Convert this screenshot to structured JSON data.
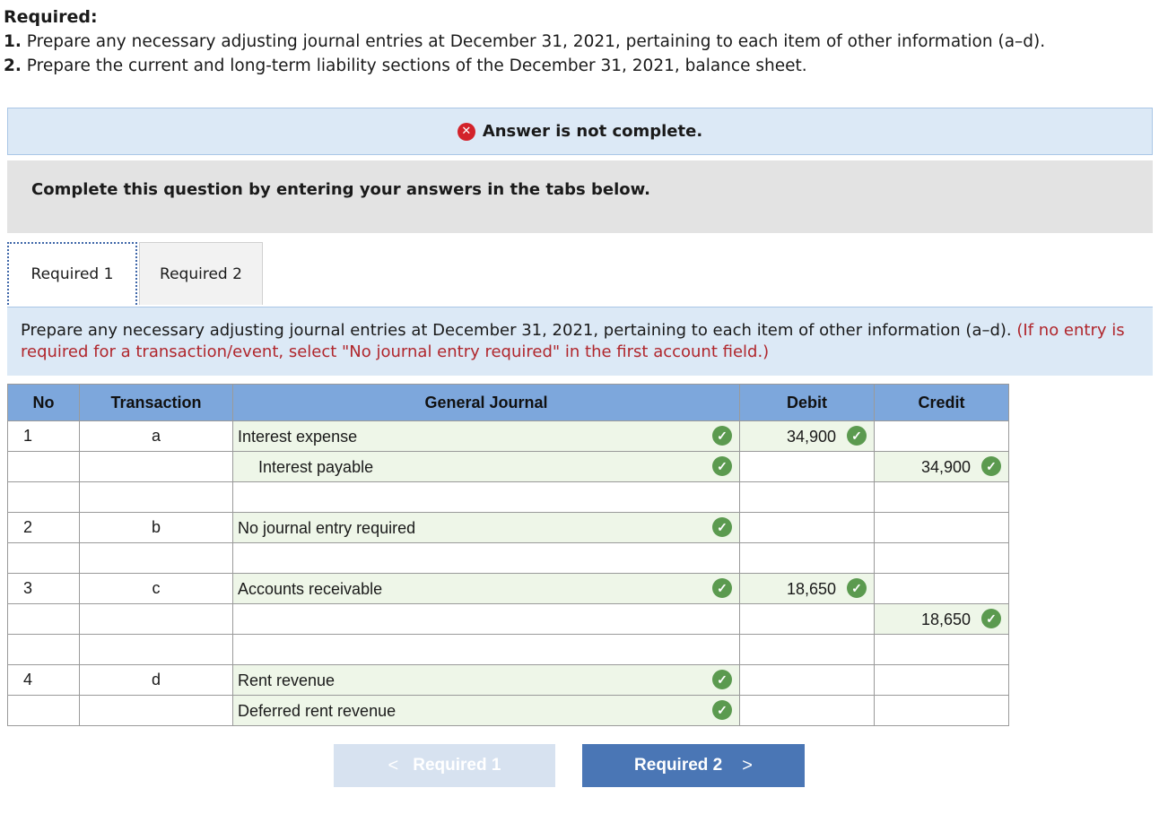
{
  "required": {
    "title": "Required:",
    "items": [
      {
        "num": "1.",
        "text": " Prepare any necessary adjusting journal entries at December 31, 2021, pertaining to each item of other information (a–d)."
      },
      {
        "num": "2.",
        "text": " Prepare the current and long-term liability sections of the December 31, 2021, balance sheet."
      }
    ]
  },
  "banner": {
    "icon": "x-circle-icon",
    "text": "Answer is not complete."
  },
  "instructions_box": "Complete this question by entering your answers in the tabs below.",
  "tabs": [
    {
      "label": "Required 1",
      "active": true
    },
    {
      "label": "Required 2",
      "active": false
    }
  ],
  "prompt": {
    "text": "Prepare any necessary adjusting journal entries at December 31, 2021, pertaining to each item of other information (a–d).",
    "note": "(If no entry is required for a transaction/event, select \"No journal entry required\" in the first account field.)"
  },
  "table": {
    "headers": {
      "no": "No",
      "transaction": "Transaction",
      "journal": "General Journal",
      "debit": "Debit",
      "credit": "Credit"
    },
    "rows": [
      {
        "no": "1",
        "transaction": "a",
        "account": "Interest expense",
        "indent": false,
        "debit": "34,900",
        "credit": "",
        "acct_check": true
      },
      {
        "no": "",
        "transaction": "",
        "account": "Interest payable",
        "indent": true,
        "debit": "",
        "credit": "34,900",
        "acct_check": true
      },
      {
        "no": "",
        "transaction": "",
        "account": "",
        "indent": false,
        "debit": "",
        "credit": "",
        "acct_check": false
      },
      {
        "no": "2",
        "transaction": "b",
        "account": "No journal entry required",
        "indent": false,
        "debit": "",
        "credit": "",
        "acct_check": true
      },
      {
        "no": "",
        "transaction": "",
        "account": "",
        "indent": false,
        "debit": "",
        "credit": "",
        "acct_check": false
      },
      {
        "no": "3",
        "transaction": "c",
        "account": "Accounts receivable",
        "indent": false,
        "debit": "18,650",
        "credit": "",
        "acct_check": true
      },
      {
        "no": "",
        "transaction": "",
        "account": "",
        "indent": false,
        "debit": "",
        "credit": "18,650",
        "acct_check": false
      },
      {
        "no": "",
        "transaction": "",
        "account": "",
        "indent": false,
        "debit": "",
        "credit": "",
        "acct_check": false
      },
      {
        "no": "4",
        "transaction": "d",
        "account": "Rent revenue",
        "indent": false,
        "debit": "",
        "credit": "",
        "acct_check": true
      },
      {
        "no": "",
        "transaction": "",
        "account": "Deferred rent revenue",
        "indent": false,
        "debit": "",
        "credit": "",
        "acct_check": true
      }
    ]
  },
  "nav": {
    "prev_label": "Required 1",
    "prev_chevron": "<",
    "next_label": "Required 2",
    "next_chevron": ">"
  },
  "colors": {
    "header_blue": "#7da7dc",
    "check_green": "#5b9a4f",
    "error_red": "#d3222a",
    "next_button": "#4a76b5"
  }
}
